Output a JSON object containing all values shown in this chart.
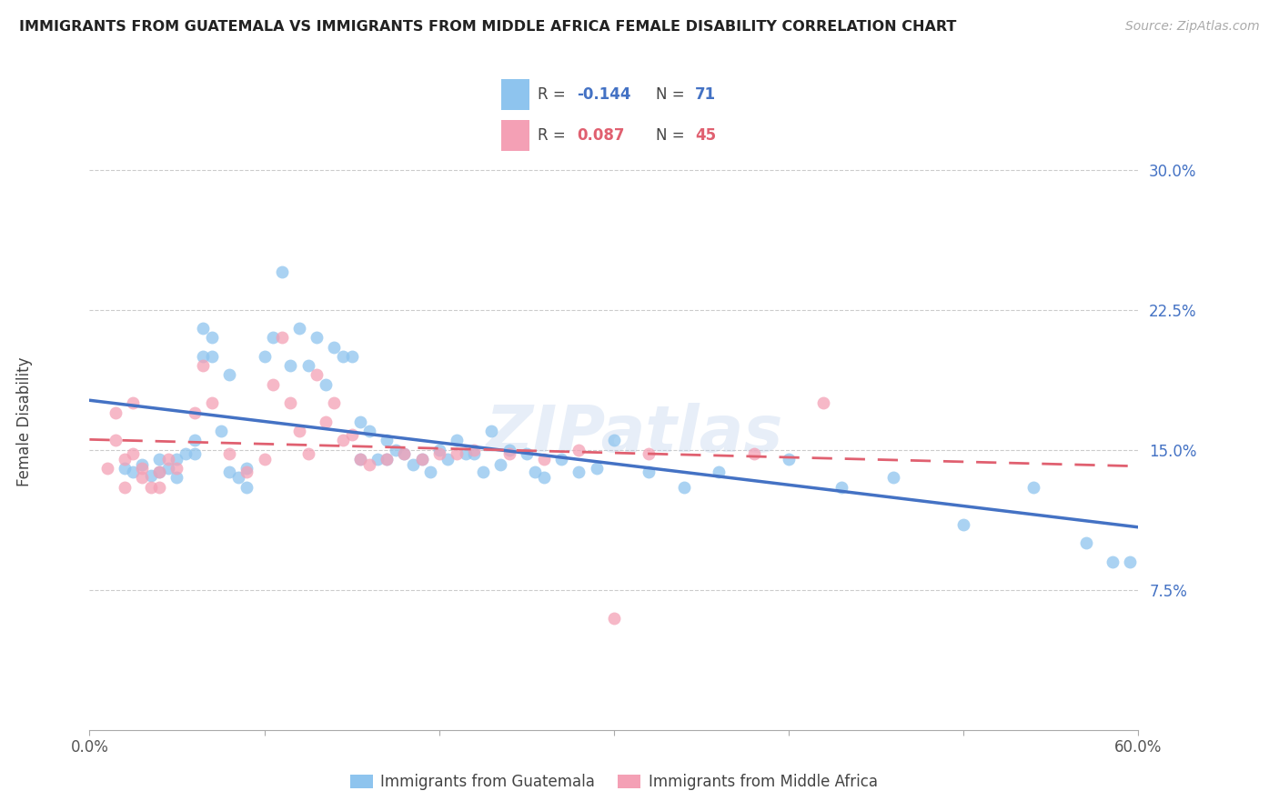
{
  "title": "IMMIGRANTS FROM GUATEMALA VS IMMIGRANTS FROM MIDDLE AFRICA FEMALE DISABILITY CORRELATION CHART",
  "source": "Source: ZipAtlas.com",
  "ylabel": "Female Disability",
  "xlabel_blue": "Immigrants from Guatemala",
  "xlabel_pink": "Immigrants from Middle Africa",
  "legend_blue_R": "-0.144",
  "legend_blue_N": "71",
  "legend_pink_R": "0.087",
  "legend_pink_N": "45",
  "xlim": [
    0.0,
    0.6
  ],
  "ylim": [
    0.0,
    0.33
  ],
  "yticks": [
    0.075,
    0.15,
    0.225,
    0.3
  ],
  "ytick_labels": [
    "7.5%",
    "15.0%",
    "22.5%",
    "30.0%"
  ],
  "xticks": [
    0.0,
    0.1,
    0.2,
    0.3,
    0.4,
    0.5,
    0.6
  ],
  "xtick_labels": [
    "0.0%",
    "",
    "",
    "",
    "",
    "",
    "60.0%"
  ],
  "color_blue": "#8EC4EE",
  "color_pink": "#F4A0B5",
  "color_blue_line": "#4472C4",
  "color_pink_line": "#E06070",
  "watermark": "ZIPatlas",
  "blue_scatter_x": [
    0.02,
    0.025,
    0.03,
    0.035,
    0.04,
    0.04,
    0.045,
    0.05,
    0.05,
    0.055,
    0.06,
    0.06,
    0.065,
    0.065,
    0.07,
    0.07,
    0.075,
    0.08,
    0.08,
    0.085,
    0.09,
    0.09,
    0.1,
    0.105,
    0.11,
    0.115,
    0.12,
    0.125,
    0.13,
    0.135,
    0.14,
    0.145,
    0.15,
    0.155,
    0.155,
    0.16,
    0.165,
    0.17,
    0.17,
    0.175,
    0.18,
    0.185,
    0.19,
    0.195,
    0.2,
    0.205,
    0.21,
    0.215,
    0.22,
    0.225,
    0.23,
    0.235,
    0.24,
    0.25,
    0.255,
    0.26,
    0.27,
    0.28,
    0.29,
    0.3,
    0.32,
    0.34,
    0.36,
    0.4,
    0.43,
    0.46,
    0.5,
    0.54,
    0.57,
    0.585,
    0.595
  ],
  "blue_scatter_y": [
    0.14,
    0.138,
    0.142,
    0.136,
    0.145,
    0.138,
    0.14,
    0.145,
    0.135,
    0.148,
    0.155,
    0.148,
    0.215,
    0.2,
    0.2,
    0.21,
    0.16,
    0.19,
    0.138,
    0.135,
    0.14,
    0.13,
    0.2,
    0.21,
    0.245,
    0.195,
    0.215,
    0.195,
    0.21,
    0.185,
    0.205,
    0.2,
    0.2,
    0.165,
    0.145,
    0.16,
    0.145,
    0.155,
    0.145,
    0.15,
    0.148,
    0.142,
    0.145,
    0.138,
    0.15,
    0.145,
    0.155,
    0.148,
    0.148,
    0.138,
    0.16,
    0.142,
    0.15,
    0.148,
    0.138,
    0.135,
    0.145,
    0.138,
    0.14,
    0.155,
    0.138,
    0.13,
    0.138,
    0.145,
    0.13,
    0.135,
    0.11,
    0.13,
    0.1,
    0.09,
    0.09
  ],
  "pink_scatter_x": [
    0.01,
    0.015,
    0.015,
    0.02,
    0.02,
    0.025,
    0.025,
    0.03,
    0.03,
    0.035,
    0.04,
    0.04,
    0.045,
    0.05,
    0.06,
    0.065,
    0.07,
    0.08,
    0.09,
    0.1,
    0.105,
    0.11,
    0.115,
    0.12,
    0.125,
    0.13,
    0.135,
    0.14,
    0.145,
    0.15,
    0.155,
    0.16,
    0.17,
    0.18,
    0.19,
    0.2,
    0.21,
    0.22,
    0.24,
    0.26,
    0.28,
    0.3,
    0.32,
    0.38,
    0.42
  ],
  "pink_scatter_y": [
    0.14,
    0.17,
    0.155,
    0.145,
    0.13,
    0.175,
    0.148,
    0.14,
    0.135,
    0.13,
    0.138,
    0.13,
    0.145,
    0.14,
    0.17,
    0.195,
    0.175,
    0.148,
    0.138,
    0.145,
    0.185,
    0.21,
    0.175,
    0.16,
    0.148,
    0.19,
    0.165,
    0.175,
    0.155,
    0.158,
    0.145,
    0.142,
    0.145,
    0.148,
    0.145,
    0.148,
    0.148,
    0.15,
    0.148,
    0.145,
    0.15,
    0.06,
    0.148,
    0.148,
    0.175
  ]
}
